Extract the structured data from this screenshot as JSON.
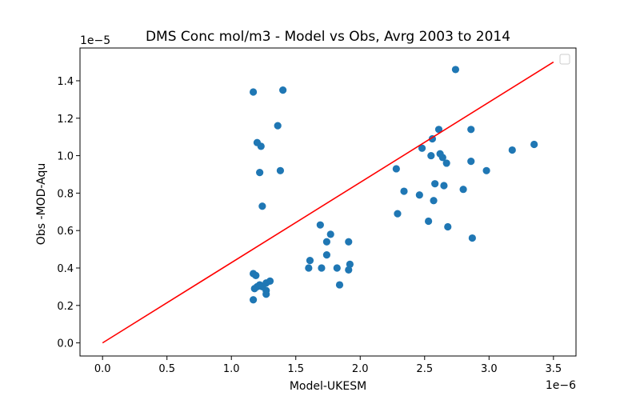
{
  "chart_data": {
    "type": "scatter",
    "title": "DMS Conc mol/m3 - Model vs Obs, Avrg 2003 to 2014",
    "xlabel": "Model-UKESM",
    "ylabel": "Obs -MOD-Aqu",
    "x_offset_label": "1e−6",
    "y_offset_label": "1e−5",
    "xlim": [
      -0.175,
      3.675
    ],
    "ylim": [
      -0.07,
      1.575
    ],
    "x_ticks": [
      0.0,
      0.5,
      1.0,
      1.5,
      2.0,
      2.5,
      3.0,
      3.5
    ],
    "x_tick_labels": [
      "0.0",
      "0.5",
      "1.0",
      "1.5",
      "2.0",
      "2.5",
      "3.0",
      "3.5"
    ],
    "y_ticks": [
      0.0,
      0.2,
      0.4,
      0.6,
      0.8,
      1.0,
      1.2,
      1.4
    ],
    "y_tick_labels": [
      "0.0",
      "0.2",
      "0.4",
      "0.6",
      "0.8",
      "1.0",
      "1.2",
      "1.4"
    ],
    "grid": false,
    "legend": "top-right",
    "point_color": "#1f77b4",
    "line_color": "#ff0000",
    "reference_line": {
      "x": [
        0.0,
        3.5
      ],
      "y": [
        0.0,
        1.5
      ]
    },
    "points": [
      [
        1.17,
        1.34
      ],
      [
        1.4,
        1.35
      ],
      [
        1.36,
        1.16
      ],
      [
        1.2,
        1.07
      ],
      [
        1.23,
        1.05
      ],
      [
        1.38,
        0.92
      ],
      [
        1.22,
        0.91
      ],
      [
        1.24,
        0.73
      ],
      [
        1.17,
        0.37
      ],
      [
        1.19,
        0.36
      ],
      [
        1.22,
        0.31
      ],
      [
        1.18,
        0.29
      ],
      [
        1.2,
        0.3
      ],
      [
        1.24,
        0.3
      ],
      [
        1.27,
        0.32
      ],
      [
        1.3,
        0.33
      ],
      [
        1.27,
        0.28
      ],
      [
        1.27,
        0.26
      ],
      [
        1.17,
        0.23
      ],
      [
        1.6,
        0.4
      ],
      [
        1.61,
        0.44
      ],
      [
        1.69,
        0.63
      ],
      [
        1.7,
        0.4
      ],
      [
        1.74,
        0.54
      ],
      [
        1.74,
        0.47
      ],
      [
        1.77,
        0.58
      ],
      [
        1.82,
        0.4
      ],
      [
        1.84,
        0.31
      ],
      [
        1.91,
        0.54
      ],
      [
        1.92,
        0.42
      ],
      [
        1.91,
        0.39
      ],
      [
        2.28,
        0.93
      ],
      [
        2.29,
        0.69
      ],
      [
        2.34,
        0.81
      ],
      [
        2.46,
        0.79
      ],
      [
        2.48,
        1.04
      ],
      [
        2.53,
        0.65
      ],
      [
        2.55,
        1.0
      ],
      [
        2.56,
        1.09
      ],
      [
        2.57,
        0.76
      ],
      [
        2.58,
        0.85
      ],
      [
        2.61,
        1.14
      ],
      [
        2.62,
        1.01
      ],
      [
        2.64,
        0.99
      ],
      [
        2.65,
        0.84
      ],
      [
        2.67,
        0.96
      ],
      [
        2.68,
        0.62
      ],
      [
        2.74,
        1.46
      ],
      [
        2.8,
        0.82
      ],
      [
        2.86,
        1.14
      ],
      [
        2.86,
        0.97
      ],
      [
        2.87,
        0.56
      ],
      [
        2.98,
        0.92
      ],
      [
        3.18,
        1.03
      ],
      [
        3.35,
        1.06
      ]
    ]
  }
}
